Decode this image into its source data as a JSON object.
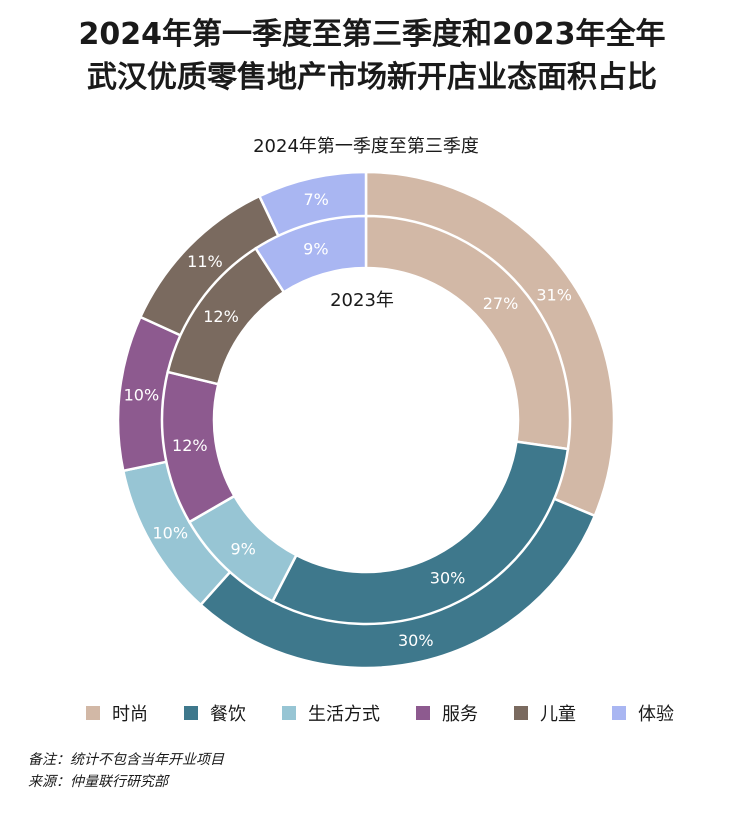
{
  "header": {
    "title_line1": "2024年第一季度至第三季度和2023年全年",
    "title_line2": "武汉优质零售地产市场新开店业态面积占比"
  },
  "chart_data": {
    "type": "donut",
    "title": "2024年第一季度至第三季度和2023年全年武汉优质零售地产市场新开店业态面积占比",
    "outer_ring_label": "2024年第一季度至第三季度",
    "inner_ring_label": "2023年",
    "categories": [
      "时尚",
      "餐饮",
      "生活方式",
      "服务",
      "儿童",
      "体验"
    ],
    "colors": [
      "#d2b8a6",
      "#3e788c",
      "#97c5d4",
      "#8d5a8f",
      "#7a6a5f",
      "#a9b6f2"
    ],
    "series": [
      {
        "name": "2024年第一季度至第三季度",
        "ring": "outer",
        "values": [
          31,
          30,
          10,
          10,
          11,
          7
        ]
      },
      {
        "name": "2023年",
        "ring": "inner",
        "values": [
          27,
          30,
          9,
          12,
          12,
          9
        ]
      }
    ],
    "unit": "%",
    "legend_position": "bottom"
  },
  "legend": {
    "items": [
      {
        "label": "时尚",
        "color": "#d2b8a6"
      },
      {
        "label": "餐饮",
        "color": "#3e788c"
      },
      {
        "label": "生活方式",
        "color": "#97c5d4"
      },
      {
        "label": "服务",
        "color": "#8d5a8f"
      },
      {
        "label": "儿童",
        "color": "#7a6a5f"
      },
      {
        "label": "体验",
        "color": "#a9b6f2"
      }
    ]
  },
  "footnotes": {
    "note": "备注：统计不包含当年开业项目",
    "source": "来源：仲量联行研究部"
  }
}
